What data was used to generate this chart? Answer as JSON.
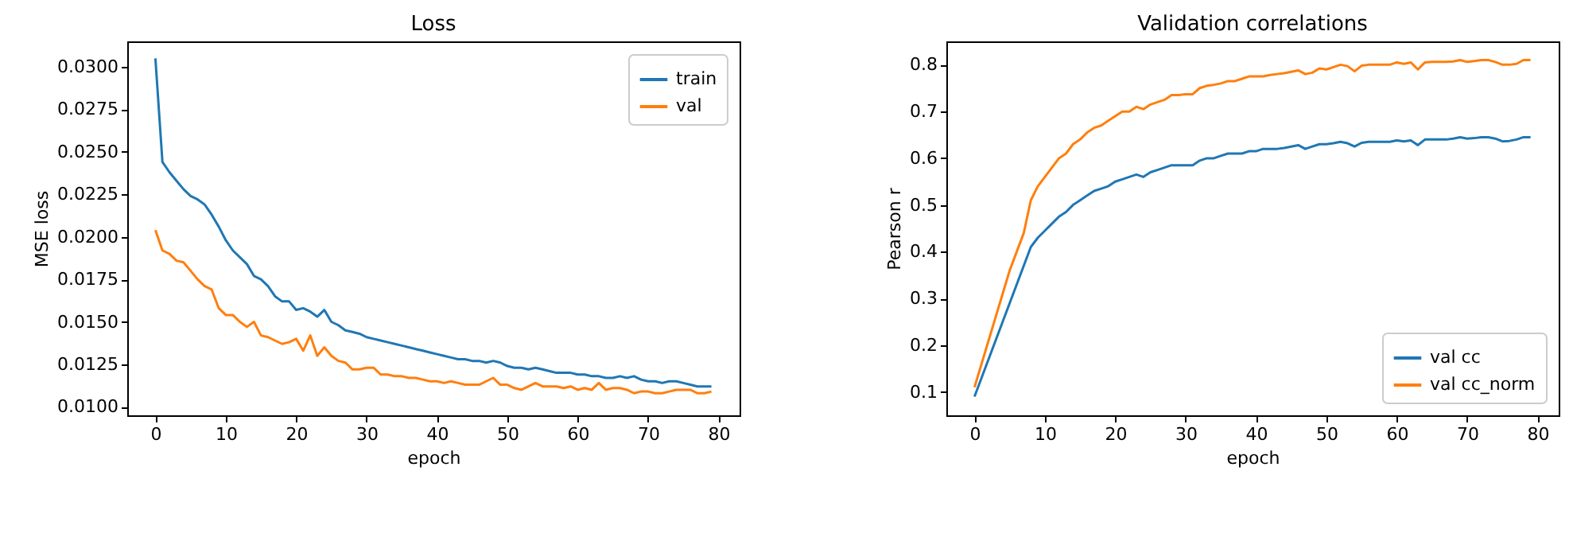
{
  "chart_data": [
    {
      "type": "line",
      "title": "Loss",
      "xlabel": "epoch",
      "ylabel": "MSE loss",
      "legend": "top right",
      "grid": false,
      "marker": "none",
      "line_style": "solid",
      "xlim": [
        -4,
        83
      ],
      "xticks": [
        0,
        10,
        20,
        30,
        40,
        50,
        60,
        70,
        80
      ],
      "ylim": [
        0.0095,
        0.0315
      ],
      "yticks": [
        {
          "value": 0.01,
          "label": "0.0100"
        },
        {
          "value": 0.0125,
          "label": "0.0125"
        },
        {
          "value": 0.015,
          "label": "0.0150"
        },
        {
          "value": 0.0175,
          "label": "0.0175"
        },
        {
          "value": 0.02,
          "label": "0.0200"
        },
        {
          "value": 0.0225,
          "label": "0.0225"
        },
        {
          "value": 0.025,
          "label": "0.0250"
        },
        {
          "value": 0.0275,
          "label": "0.0275"
        },
        {
          "value": 0.03,
          "label": "0.0300"
        }
      ],
      "x": [
        0,
        1,
        2,
        3,
        4,
        5,
        6,
        7,
        8,
        9,
        10,
        11,
        12,
        13,
        14,
        15,
        16,
        17,
        18,
        19,
        20,
        21,
        22,
        23,
        24,
        25,
        26,
        27,
        28,
        29,
        30,
        31,
        32,
        33,
        34,
        35,
        36,
        37,
        38,
        39,
        40,
        41,
        42,
        43,
        44,
        45,
        46,
        47,
        48,
        49,
        50,
        51,
        52,
        53,
        54,
        55,
        56,
        57,
        58,
        59,
        60,
        61,
        62,
        63,
        64,
        65,
        66,
        67,
        68,
        69,
        70,
        71,
        72,
        73,
        74,
        75,
        76,
        77,
        78,
        79
      ],
      "series": [
        {
          "name": "train",
          "color": "#1f77b4",
          "values": [
            0.0305,
            0.0244,
            0.0238,
            0.0233,
            0.0228,
            0.0224,
            0.0222,
            0.0219,
            0.0213,
            0.0206,
            0.0198,
            0.0192,
            0.0188,
            0.0184,
            0.0177,
            0.0175,
            0.0171,
            0.0165,
            0.0162,
            0.0162,
            0.0157,
            0.0158,
            0.0156,
            0.0153,
            0.0157,
            0.015,
            0.0148,
            0.0145,
            0.0144,
            0.0143,
            0.0141,
            0.014,
            0.0139,
            0.0138,
            0.0137,
            0.0136,
            0.0135,
            0.0134,
            0.0133,
            0.0132,
            0.0131,
            0.013,
            0.0129,
            0.0128,
            0.0128,
            0.0127,
            0.0127,
            0.0126,
            0.0127,
            0.0126,
            0.0124,
            0.0123,
            0.0123,
            0.0122,
            0.0123,
            0.0122,
            0.0121,
            0.012,
            0.012,
            0.012,
            0.0119,
            0.0119,
            0.0118,
            0.0118,
            0.0117,
            0.0117,
            0.0118,
            0.0117,
            0.0118,
            0.0116,
            0.0115,
            0.0115,
            0.0114,
            0.0115,
            0.0115,
            0.0114,
            0.0113,
            0.0112,
            0.0112,
            0.0112
          ]
        },
        {
          "name": "val",
          "color": "#ff7f0e",
          "values": [
            0.0204,
            0.0192,
            0.019,
            0.0186,
            0.0185,
            0.018,
            0.0175,
            0.0171,
            0.0169,
            0.0158,
            0.0154,
            0.0154,
            0.015,
            0.0147,
            0.015,
            0.0142,
            0.0141,
            0.0139,
            0.0137,
            0.0138,
            0.014,
            0.0133,
            0.0142,
            0.013,
            0.0135,
            0.013,
            0.0127,
            0.0126,
            0.0122,
            0.0122,
            0.0123,
            0.0123,
            0.0119,
            0.0119,
            0.0118,
            0.0118,
            0.0117,
            0.0117,
            0.0116,
            0.0115,
            0.0115,
            0.0114,
            0.0115,
            0.0114,
            0.0113,
            0.0113,
            0.0113,
            0.0115,
            0.0117,
            0.0113,
            0.0113,
            0.0111,
            0.011,
            0.0112,
            0.0114,
            0.0112,
            0.0112,
            0.0112,
            0.0111,
            0.0112,
            0.011,
            0.0111,
            0.011,
            0.0114,
            0.011,
            0.0111,
            0.0111,
            0.011,
            0.0108,
            0.0109,
            0.0109,
            0.0108,
            0.0108,
            0.0109,
            0.011,
            0.011,
            0.011,
            0.0108,
            0.0108,
            0.0109
          ]
        }
      ]
    },
    {
      "type": "line",
      "title": "Validation correlations",
      "xlabel": "epoch",
      "ylabel": "Pearson r",
      "legend": "bottom right",
      "grid": false,
      "marker": "none",
      "line_style": "solid",
      "xlim": [
        -4,
        83
      ],
      "xticks": [
        0,
        10,
        20,
        30,
        40,
        50,
        60,
        70,
        80
      ],
      "ylim": [
        0.05,
        0.85
      ],
      "yticks": [
        0.1,
        0.2,
        0.3,
        0.4,
        0.5,
        0.6,
        0.7,
        0.8
      ],
      "x": [
        0,
        1,
        2,
        3,
        4,
        5,
        6,
        7,
        8,
        9,
        10,
        11,
        12,
        13,
        14,
        15,
        16,
        17,
        18,
        19,
        20,
        21,
        22,
        23,
        24,
        25,
        26,
        27,
        28,
        29,
        30,
        31,
        32,
        33,
        34,
        35,
        36,
        37,
        38,
        39,
        40,
        41,
        42,
        43,
        44,
        45,
        46,
        47,
        48,
        49,
        50,
        51,
        52,
        53,
        54,
        55,
        56,
        57,
        58,
        59,
        60,
        61,
        62,
        63,
        64,
        65,
        66,
        67,
        68,
        69,
        70,
        71,
        72,
        73,
        74,
        75,
        76,
        77,
        78,
        79
      ],
      "series": [
        {
          "name": "val cc",
          "color": "#1f77b4",
          "values": [
            0.09,
            0.13,
            0.17,
            0.21,
            0.25,
            0.29,
            0.33,
            0.37,
            0.41,
            0.43,
            0.445,
            0.46,
            0.475,
            0.485,
            0.5,
            0.51,
            0.52,
            0.53,
            0.535,
            0.54,
            0.55,
            0.555,
            0.56,
            0.565,
            0.56,
            0.57,
            0.575,
            0.58,
            0.585,
            0.585,
            0.585,
            0.585,
            0.595,
            0.6,
            0.6,
            0.605,
            0.61,
            0.61,
            0.61,
            0.615,
            0.615,
            0.62,
            0.62,
            0.62,
            0.622,
            0.625,
            0.628,
            0.62,
            0.625,
            0.63,
            0.63,
            0.632,
            0.635,
            0.632,
            0.625,
            0.633,
            0.635,
            0.635,
            0.635,
            0.635,
            0.638,
            0.636,
            0.638,
            0.628,
            0.64,
            0.64,
            0.64,
            0.64,
            0.642,
            0.645,
            0.642,
            0.643,
            0.645,
            0.645,
            0.642,
            0.636,
            0.637,
            0.64,
            0.645,
            0.645
          ]
        },
        {
          "name": "val cc_norm",
          "color": "#ff7f0e",
          "values": [
            0.11,
            0.16,
            0.21,
            0.26,
            0.31,
            0.36,
            0.4,
            0.44,
            0.51,
            0.54,
            0.56,
            0.58,
            0.6,
            0.61,
            0.63,
            0.64,
            0.655,
            0.665,
            0.67,
            0.68,
            0.69,
            0.7,
            0.7,
            0.71,
            0.705,
            0.715,
            0.72,
            0.725,
            0.735,
            0.735,
            0.737,
            0.737,
            0.75,
            0.755,
            0.757,
            0.76,
            0.765,
            0.765,
            0.77,
            0.775,
            0.775,
            0.775,
            0.778,
            0.78,
            0.782,
            0.785,
            0.788,
            0.78,
            0.783,
            0.792,
            0.79,
            0.795,
            0.8,
            0.797,
            0.786,
            0.798,
            0.8,
            0.8,
            0.8,
            0.8,
            0.805,
            0.802,
            0.805,
            0.79,
            0.805,
            0.806,
            0.806,
            0.806,
            0.807,
            0.81,
            0.806,
            0.808,
            0.81,
            0.81,
            0.806,
            0.8,
            0.8,
            0.802,
            0.81,
            0.81
          ]
        }
      ]
    }
  ]
}
